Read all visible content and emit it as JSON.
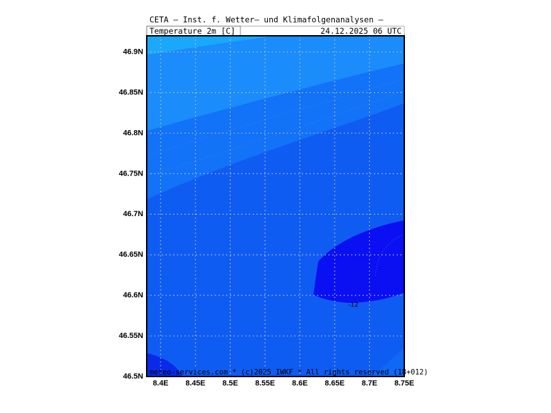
{
  "header": {
    "title": "CETA — Inst. f. Wetter— und Klimafolgenanalysen —",
    "field": "Temperature_2m_[C]",
    "time": "24.12.2025 06 UTC"
  },
  "map": {
    "xlim": [
      8.38,
      8.75
    ],
    "ylim": [
      46.5,
      46.92
    ],
    "xticks": [
      {
        "value": 8.4,
        "label": "8.4E"
      },
      {
        "value": 8.45,
        "label": "8.45E"
      },
      {
        "value": 8.5,
        "label": "8.5E"
      },
      {
        "value": 8.55,
        "label": "8.55E"
      },
      {
        "value": 8.6,
        "label": "8.6E"
      },
      {
        "value": 8.65,
        "label": "8.65E"
      },
      {
        "value": 8.7,
        "label": "8.7E"
      },
      {
        "value": 8.75,
        "label": "8.75E"
      }
    ],
    "yticks": [
      {
        "value": 46.5,
        "label": "46.5N"
      },
      {
        "value": 46.55,
        "label": "46.55N"
      },
      {
        "value": 46.6,
        "label": "46.6N"
      },
      {
        "value": 46.65,
        "label": "46.65N"
      },
      {
        "value": 46.7,
        "label": "46.7N"
      },
      {
        "value": 46.75,
        "label": "46.75N"
      },
      {
        "value": 46.8,
        "label": "46.8N"
      },
      {
        "value": 46.85,
        "label": "46.85N"
      },
      {
        "value": 46.9,
        "label": "46.9N"
      }
    ],
    "contour_label": "-12",
    "footer": "meteo-services.com * (c)2025 IWKF * All rights reserved (18+012)"
  }
}
